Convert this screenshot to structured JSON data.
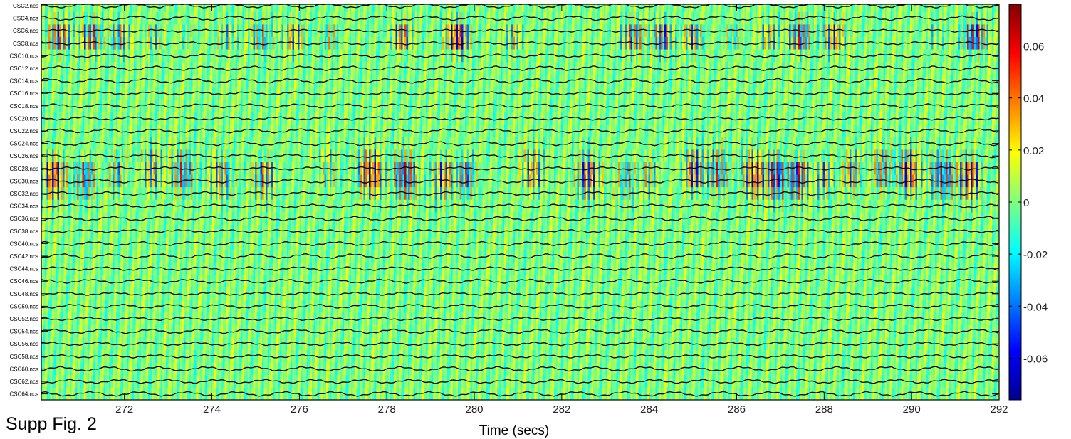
{
  "caption": "Supp Fig. 2",
  "chart_data": {
    "type": "heatmap",
    "title": "",
    "xlabel": "Time (secs)",
    "ylabel": "",
    "xlim": [
      270.1,
      292
    ],
    "x_ticks": [
      272,
      274,
      276,
      278,
      280,
      282,
      284,
      286,
      288,
      290,
      292
    ],
    "channels": [
      "CSC2.ncs",
      "CSC4.ncs",
      "CSC6.ncs",
      "CSC8.ncs",
      "CSC10.ncs",
      "CSC12.ncs",
      "CSC14.ncs",
      "CSC16.ncs",
      "CSC18.ncs",
      "CSC20.ncs",
      "CSC22.ncs",
      "CSC24.ncs",
      "CSC26.ncs",
      "CSC28.ncs",
      "CSC30.ncs",
      "CSC32.ncs",
      "CSC34.ncs",
      "CSC36.ncs",
      "CSC38.ncs",
      "CSC40.ncs",
      "CSC42.ncs",
      "CSC44.ncs",
      "CSC46.ncs",
      "CSC48.ncs",
      "CSC50.ncs",
      "CSC52.ncs",
      "CSC54.ncs",
      "CSC56.ncs",
      "CSC58.ncs",
      "CSC60.ncs",
      "CSC62.ncs",
      "CSC64.ncs"
    ],
    "colorbar": {
      "colormap": "jet",
      "clim": [
        -0.076,
        0.076
      ],
      "ticks": [
        -0.06,
        -0.04,
        -0.02,
        0,
        0.02,
        0.04,
        0.06
      ],
      "tick_labels": [
        "-0.06",
        "-0.04",
        "-0.02",
        "0",
        "0.02",
        "0.04",
        "0.06"
      ]
    },
    "grid": false
  }
}
